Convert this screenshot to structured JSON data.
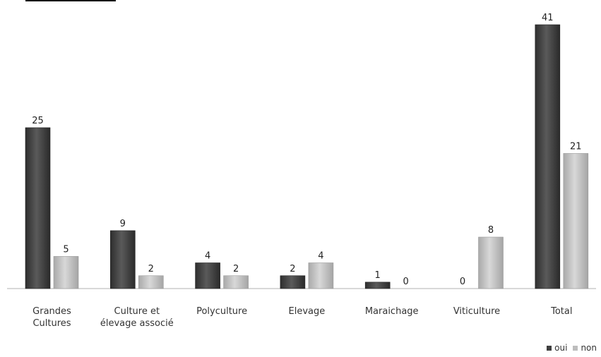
{
  "chart_data": {
    "type": "bar",
    "categories": [
      [
        "Grandes",
        "Cultures"
      ],
      [
        "Culture et",
        "élevage associé"
      ],
      [
        "Polyculture"
      ],
      [
        "Elevage"
      ],
      [
        "Maraichage"
      ],
      [
        "Viticulture"
      ],
      [
        "Total"
      ]
    ],
    "series": [
      {
        "name": "oui",
        "values": [
          25,
          9,
          4,
          2,
          1,
          0,
          41
        ],
        "color": "#3f3f3f"
      },
      {
        "name": "non",
        "values": [
          5,
          2,
          2,
          4,
          0,
          8,
          21
        ],
        "color": "#bdbdbd"
      }
    ],
    "title": "",
    "xlabel": "",
    "ylabel": "",
    "ylim": [
      0,
      41
    ],
    "grid": false,
    "legend": "bottom-right"
  }
}
